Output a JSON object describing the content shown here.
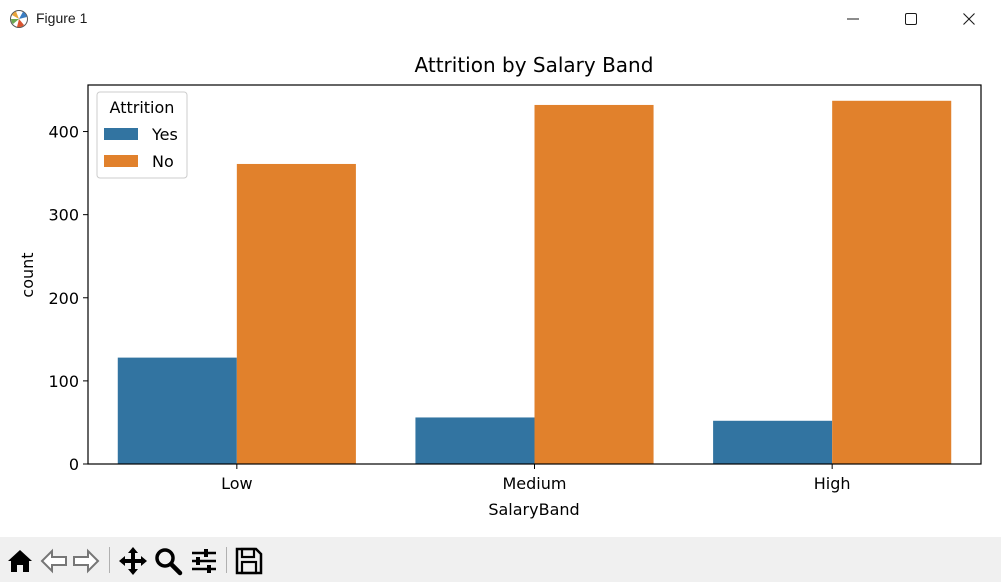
{
  "window": {
    "title": "Figure 1",
    "controls": {
      "minimize": "minimize",
      "maximize": "maximize",
      "close": "close"
    }
  },
  "toolbar": {
    "buttons": [
      "home-icon",
      "back-arrow-icon",
      "forward-arrow-icon",
      "pan-move-icon",
      "zoom-magnifier-icon",
      "configure-subplots-icon",
      "save-disk-icon"
    ]
  },
  "chart_data": {
    "type": "bar",
    "title": "Attrition by Salary Band",
    "xlabel": "SalaryBand",
    "ylabel": "count",
    "categories": [
      "Low",
      "Medium",
      "High"
    ],
    "series": [
      {
        "name": "Yes",
        "color": "#3274a1",
        "values": [
          128,
          56,
          52
        ]
      },
      {
        "name": "No",
        "color": "#e1812c",
        "values": [
          361,
          432,
          437
        ]
      }
    ],
    "ylim": [
      0,
      456
    ],
    "yticks": [
      0,
      100,
      200,
      300,
      400
    ],
    "legend": {
      "title": "Attrition",
      "position": "top-left"
    },
    "grid": false
  }
}
